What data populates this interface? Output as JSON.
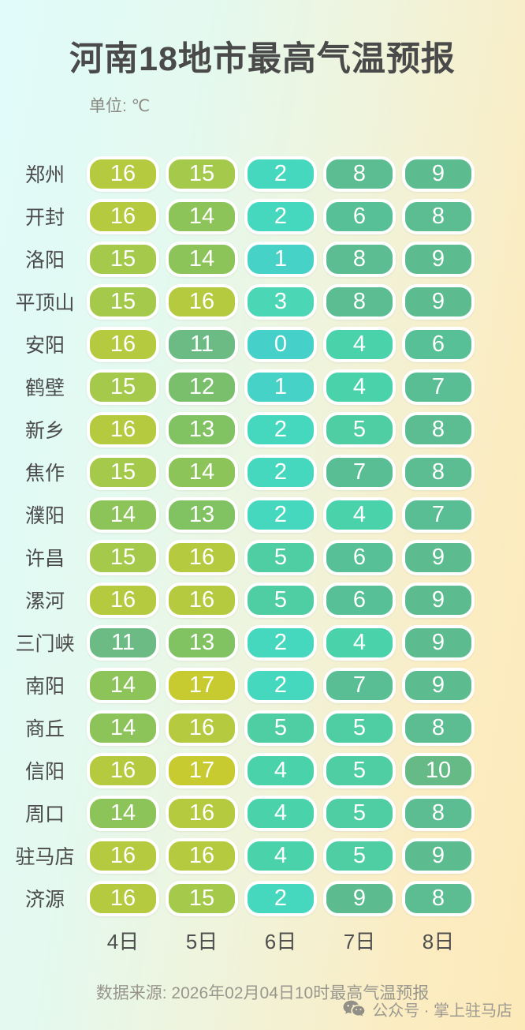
{
  "header": {
    "title": "河南18地市最高气温预报",
    "unit_label": "单位: ℃"
  },
  "footer": {
    "source_note": "数据来源: 2026年02月04日10时最高气温预报",
    "account_label": "公众号 · 掌上驻马店"
  },
  "icons": {
    "wechat": "wechat-icon"
  },
  "colors": {
    "title_text": "#4a4a4a",
    "pill_text": "#ffffff",
    "pill_border": "#ffffff",
    "bg_left": "#e0fbfa",
    "bg_right": "#fdeab9"
  },
  "chart_data": {
    "type": "heatmap",
    "title": "河南18地市最高气温预报",
    "unit": "℃",
    "columns": [
      "4日",
      "5日",
      "6日",
      "7日",
      "8日"
    ],
    "rows": [
      {
        "city": "郑州",
        "values": [
          16,
          15,
          2,
          8,
          9
        ]
      },
      {
        "city": "开封",
        "values": [
          16,
          14,
          2,
          6,
          8
        ]
      },
      {
        "city": "洛阳",
        "values": [
          15,
          14,
          1,
          8,
          9
        ]
      },
      {
        "city": "平顶山",
        "values": [
          15,
          16,
          3,
          8,
          9
        ]
      },
      {
        "city": "安阳",
        "values": [
          16,
          11,
          0,
          4,
          6
        ]
      },
      {
        "city": "鹤壁",
        "values": [
          15,
          12,
          1,
          4,
          7
        ]
      },
      {
        "city": "新乡",
        "values": [
          16,
          13,
          2,
          5,
          8
        ]
      },
      {
        "city": "焦作",
        "values": [
          15,
          14,
          2,
          7,
          8
        ]
      },
      {
        "city": "濮阳",
        "values": [
          14,
          13,
          2,
          4,
          7
        ]
      },
      {
        "city": "许昌",
        "values": [
          15,
          16,
          5,
          6,
          9
        ]
      },
      {
        "city": "漯河",
        "values": [
          16,
          16,
          5,
          6,
          9
        ]
      },
      {
        "city": "三门峡",
        "values": [
          11,
          13,
          2,
          4,
          9
        ]
      },
      {
        "city": "南阳",
        "values": [
          14,
          17,
          2,
          7,
          9
        ]
      },
      {
        "city": "商丘",
        "values": [
          14,
          16,
          5,
          5,
          8
        ]
      },
      {
        "city": "信阳",
        "values": [
          16,
          17,
          4,
          5,
          10
        ]
      },
      {
        "city": "周口",
        "values": [
          14,
          16,
          4,
          5,
          8
        ]
      },
      {
        "city": "驻马店",
        "values": [
          16,
          16,
          4,
          5,
          9
        ]
      },
      {
        "city": "济源",
        "values": [
          16,
          15,
          2,
          9,
          8
        ]
      }
    ],
    "color_scale": {
      "0": "#45d0c9",
      "1": "#46d2c6",
      "2": "#45d8bf",
      "3": "#4bd6b5",
      "4": "#4ad3ab",
      "5": "#4fcea3",
      "6": "#58c097",
      "7": "#59be94",
      "8": "#5bbd91",
      "9": "#5cbc8f",
      "10": "#66ba86",
      "11": "#6dbb84",
      "12": "#79bf6c",
      "13": "#81c263",
      "14": "#8dc45a",
      "15": "#a5c94a",
      "16": "#b5ca3e",
      "17": "#c8cb2f"
    },
    "legend": "none",
    "grid": false
  }
}
